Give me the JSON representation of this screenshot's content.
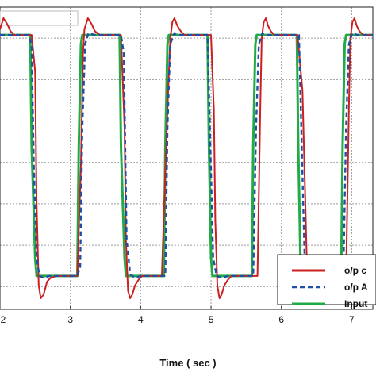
{
  "chart_data": {
    "type": "line",
    "xlabel": "Time ( sec )",
    "x_ticks": [
      "2",
      "3",
      "4",
      "5",
      "6",
      "7"
    ],
    "xlim": [
      2.0,
      7.3
    ],
    "ylim": [
      -0.58,
      1.05
    ],
    "grid": true,
    "legend_position": "bottom-right",
    "series": [
      {
        "name": "o/p c",
        "color": "#cc1f1f",
        "style": "solid",
        "x": [
          2.0,
          2.05,
          2.1,
          2.15,
          2.2,
          2.3,
          2.45,
          2.5,
          2.52,
          2.55,
          2.58,
          2.62,
          2.67,
          2.72,
          2.8,
          2.9,
          3.0,
          3.1,
          3.15,
          3.18,
          3.2,
          3.25,
          3.3,
          3.35,
          3.42,
          3.5,
          3.6,
          3.72,
          3.77,
          3.79,
          3.82,
          3.85,
          3.88,
          3.92,
          3.97,
          4.02,
          4.1,
          4.2,
          4.3,
          4.38,
          4.42,
          4.45,
          4.48,
          4.52,
          4.57,
          4.62,
          4.7,
          4.8,
          4.9,
          5.0,
          5.04,
          5.06,
          5.09,
          5.12,
          5.15,
          5.19,
          5.24,
          5.29,
          5.37,
          5.47,
          5.57,
          5.66,
          5.7,
          5.72,
          5.75,
          5.78,
          5.81,
          5.85,
          5.9,
          5.95,
          6.03,
          6.13,
          6.23,
          6.3,
          6.34,
          6.37,
          6.4,
          6.44,
          6.49,
          6.54,
          6.62,
          6.72,
          6.82,
          6.92,
          6.96,
          6.98,
          7.01,
          7.04,
          7.07,
          7.11,
          7.16,
          7.21,
          7.3
        ],
        "y": [
          0.93,
          0.99,
          0.96,
          0.92,
          0.9,
          0.9,
          0.9,
          0.7,
          0.0,
          -0.45,
          -0.52,
          -0.5,
          -0.43,
          -0.41,
          -0.4,
          -0.4,
          -0.4,
          -0.4,
          0.2,
          0.8,
          0.93,
          0.99,
          0.96,
          0.92,
          0.9,
          0.9,
          0.9,
          0.9,
          0.4,
          -0.2,
          -0.48,
          -0.52,
          -0.5,
          -0.45,
          -0.42,
          -0.4,
          -0.4,
          -0.4,
          -0.4,
          0.5,
          0.88,
          0.97,
          0.99,
          0.95,
          0.92,
          0.9,
          0.9,
          0.9,
          0.9,
          0.9,
          0.5,
          -0.1,
          -0.45,
          -0.52,
          -0.5,
          -0.45,
          -0.42,
          -0.4,
          -0.4,
          -0.4,
          -0.4,
          -0.4,
          0.5,
          0.88,
          0.97,
          0.99,
          0.95,
          0.92,
          0.9,
          0.9,
          0.9,
          0.9,
          0.9,
          0.6,
          0.0,
          -0.45,
          -0.52,
          -0.5,
          -0.44,
          -0.41,
          -0.4,
          -0.4,
          -0.4,
          -0.4,
          0.5,
          0.88,
          0.97,
          0.99,
          0.95,
          0.92,
          0.9,
          0.9,
          0.9
        ]
      },
      {
        "name": "o/p A",
        "color": "#1f4fa8",
        "style": "dashed",
        "x": [
          2.0,
          2.1,
          2.2,
          2.3,
          2.4,
          2.45,
          2.48,
          2.52,
          2.56,
          2.62,
          2.7,
          2.8,
          2.9,
          3.0,
          3.1,
          3.14,
          3.17,
          3.21,
          3.26,
          3.35,
          3.45,
          3.55,
          3.65,
          3.72,
          3.76,
          3.8,
          3.85,
          3.92,
          4.0,
          4.1,
          4.2,
          4.35,
          4.38,
          4.42,
          4.48,
          4.55,
          4.65,
          4.8,
          4.95,
          4.99,
          5.03,
          5.08,
          5.15,
          5.25,
          5.4,
          5.6,
          5.64,
          5.68,
          5.73,
          5.8,
          5.9,
          6.05,
          6.25,
          6.29,
          6.33,
          6.38,
          6.45,
          6.55,
          6.7,
          6.88,
          6.92,
          6.96,
          7.01,
          7.08,
          7.18,
          7.3
        ],
        "y": [
          0.9,
          0.9,
          0.9,
          0.9,
          0.9,
          0.85,
          0.2,
          -0.3,
          -0.4,
          -0.41,
          -0.4,
          -0.4,
          -0.4,
          -0.4,
          -0.4,
          -0.35,
          0.4,
          0.85,
          0.91,
          0.9,
          0.9,
          0.9,
          0.9,
          0.9,
          0.8,
          -0.2,
          -0.39,
          -0.41,
          -0.4,
          -0.4,
          -0.4,
          -0.4,
          0.4,
          0.85,
          0.91,
          0.9,
          0.9,
          0.9,
          0.9,
          0.3,
          -0.3,
          -0.4,
          -0.41,
          -0.4,
          -0.4,
          -0.4,
          0.4,
          0.85,
          0.91,
          0.9,
          0.9,
          0.9,
          0.9,
          0.3,
          -0.3,
          -0.4,
          -0.41,
          -0.4,
          -0.4,
          -0.4,
          0.4,
          0.85,
          0.91,
          0.9,
          0.9,
          0.9
        ]
      },
      {
        "name": "Input",
        "color": "#22aa44",
        "style": "solid",
        "x": [
          2.0,
          2.43,
          2.45,
          2.5,
          2.52,
          3.1,
          3.12,
          3.15,
          3.17,
          3.7,
          3.72,
          3.77,
          3.79,
          4.33,
          4.35,
          4.38,
          4.4,
          4.95,
          4.97,
          5.0,
          5.02,
          5.58,
          5.6,
          5.63,
          5.65,
          6.22,
          6.24,
          6.27,
          6.29,
          6.85,
          6.87,
          6.9,
          6.92,
          7.3
        ],
        "y": [
          0.9,
          0.9,
          0.3,
          -0.3,
          -0.4,
          -0.4,
          0.3,
          0.85,
          0.9,
          0.9,
          0.3,
          -0.3,
          -0.4,
          -0.4,
          0.3,
          0.85,
          0.9,
          0.9,
          0.3,
          -0.3,
          -0.4,
          -0.4,
          0.3,
          0.85,
          0.9,
          0.9,
          0.3,
          -0.3,
          -0.4,
          -0.4,
          0.3,
          0.85,
          0.9,
          0.9
        ]
      }
    ]
  }
}
